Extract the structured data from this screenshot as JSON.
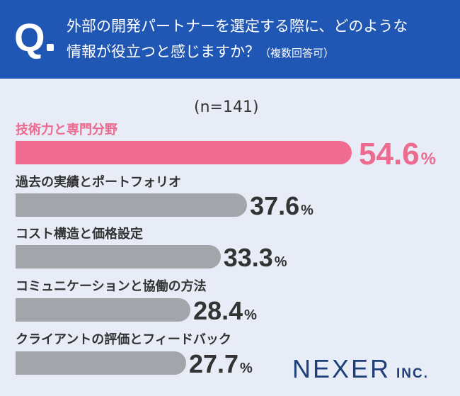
{
  "question": {
    "mark": "Q",
    "line1": "外部の開発パートナーを選定する際に、どのような",
    "line2": "情報が役立つと感じますか？",
    "note": "（複数回答可）"
  },
  "sample_size": "(n=141)",
  "brand": {
    "name": "NEXER",
    "suffix": "INC."
  },
  "colors": {
    "header": "#2157b4",
    "highlight": "#ef6b8f",
    "bar": "#a4a5ab",
    "background": "#e7ecf6"
  },
  "chart_data": {
    "type": "bar",
    "orientation": "horizontal",
    "unit": "%",
    "categories": [
      "技術力と専門分野",
      "過去の実績とポートフォリオ",
      "コスト構造と価格設定",
      "コミュニケーションと協働の方法",
      "クライアントの評価とフィードバック"
    ],
    "values": [
      54.6,
      37.6,
      33.3,
      28.4,
      27.7
    ],
    "value_labels": [
      "54.6",
      "37.6",
      "33.3",
      "28.4",
      "27.7"
    ],
    "highlight_index": 0
  }
}
